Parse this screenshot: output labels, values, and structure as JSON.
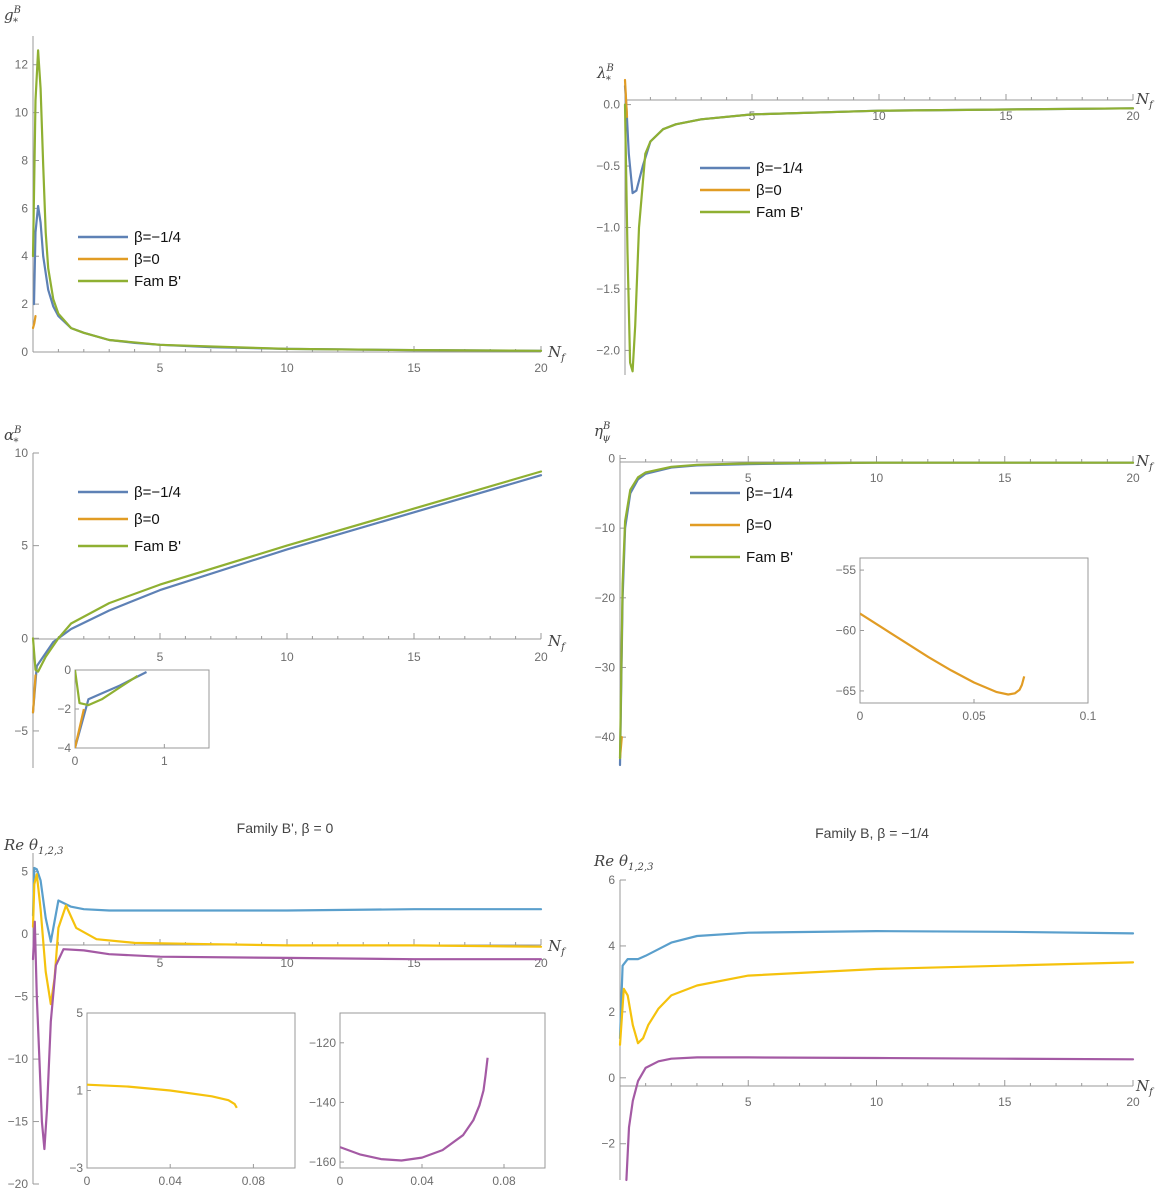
{
  "colors": {
    "blue": "#5e81b5",
    "orange": "#e19c24",
    "green": "#8fb032",
    "theta_blue": "#5a9fcc",
    "theta_yellow": "#f5c20d",
    "theta_purple": "#a45aa4",
    "axis": "#999999",
    "tick_text": "#6e6e6e"
  },
  "legend_labels": [
    "β=−1/4",
    "β=0",
    "Fam B'"
  ],
  "chart_data": [
    {
      "id": "g",
      "type": "line",
      "ylabel": "g",
      "ylabel_sup": "B",
      "ylabel_sub": "*",
      "xlabel": "N",
      "xlabel_sub": "f",
      "xlim": [
        0,
        20
      ],
      "ylim": [
        0,
        13.2
      ],
      "xticks": [
        5,
        10,
        15,
        20
      ],
      "yticks": [
        0,
        2,
        4,
        6,
        8,
        10,
        12
      ],
      "legend": [
        "β=−1/4",
        "β=0",
        "Fam B'"
      ],
      "series": [
        {
          "name": "β=−1/4",
          "color": "blue",
          "x": [
            0.04,
            0.1,
            0.2,
            0.3,
            0.4,
            0.6,
            0.8,
            1.0,
            1.5,
            2,
            3,
            4,
            5,
            7,
            10,
            15,
            20
          ],
          "y": [
            2.0,
            5.0,
            6.1,
            5.4,
            4.0,
            2.6,
            1.9,
            1.5,
            1.0,
            0.8,
            0.5,
            0.38,
            0.3,
            0.2,
            0.13,
            0.08,
            0.05
          ]
        },
        {
          "name": "β=0",
          "color": "orange",
          "x": [
            0.0,
            0.05,
            0.1
          ],
          "y": [
            1.0,
            1.2,
            1.5
          ]
        },
        {
          "name": "Fam B'",
          "color": "green",
          "x": [
            0.0,
            0.1,
            0.2,
            0.3,
            0.4,
            0.5,
            0.6,
            0.8,
            1.0,
            1.5,
            2,
            3,
            5,
            10,
            15,
            20
          ],
          "y": [
            4.0,
            10.5,
            12.6,
            11.0,
            7.8,
            5.0,
            3.5,
            2.2,
            1.6,
            1.0,
            0.8,
            0.5,
            0.3,
            0.13,
            0.08,
            0.05
          ]
        }
      ]
    },
    {
      "id": "lambda",
      "type": "line",
      "ylabel": "λ",
      "ylabel_sup": "B",
      "ylabel_sub": "*",
      "xlabel": "N",
      "xlabel_sub": "f",
      "xlim": [
        0,
        20
      ],
      "ylim": [
        -2.2,
        0.2
      ],
      "xticks": [
        5,
        10,
        15,
        20
      ],
      "yticks": [
        0.0,
        -0.5,
        -1.0,
        -1.5,
        -2.0
      ],
      "legend": [
        "β=−1/4",
        "β=0",
        "Fam B'"
      ],
      "series": [
        {
          "name": "β=−1/4",
          "color": "blue",
          "x": [
            0.0,
            0.05,
            0.15,
            0.3,
            0.45,
            0.7,
            1.0,
            1.5,
            2,
            3,
            5,
            10,
            15,
            20
          ],
          "y": [
            0.15,
            0.0,
            -0.4,
            -0.72,
            -0.7,
            -0.5,
            -0.3,
            -0.2,
            -0.16,
            -0.12,
            -0.08,
            -0.05,
            -0.04,
            -0.03
          ]
        },
        {
          "name": "β=0",
          "color": "orange",
          "x": [
            0.0,
            0.04,
            0.08
          ],
          "y": [
            0.2,
            0.05,
            -0.1
          ]
        },
        {
          "name": "Fam B'",
          "color": "green",
          "x": [
            0.0,
            0.1,
            0.2,
            0.3,
            0.4,
            0.55,
            0.8,
            1.0,
            1.5,
            2,
            3,
            5,
            10,
            15,
            20
          ],
          "y": [
            0.0,
            -1.2,
            -2.1,
            -2.17,
            -1.8,
            -1.0,
            -0.4,
            -0.3,
            -0.2,
            -0.16,
            -0.12,
            -0.08,
            -0.05,
            -0.04,
            -0.03
          ]
        }
      ]
    },
    {
      "id": "alpha",
      "type": "line",
      "ylabel": "α",
      "ylabel_sup": "B",
      "ylabel_sub": "*",
      "xlabel": "N",
      "xlabel_sub": "f",
      "xlim": [
        0,
        20
      ],
      "ylim": [
        -7,
        10
      ],
      "xticks": [
        5,
        10,
        15,
        20
      ],
      "yticks": [
        -5,
        0,
        5,
        10
      ],
      "legend": [
        "β=−1/4",
        "β=0",
        "Fam B'"
      ],
      "series": [
        {
          "name": "β=−1/4",
          "color": "blue",
          "x": [
            0.0,
            0.15,
            0.4,
            0.8,
            1.5,
            3,
            5,
            10,
            15,
            20
          ],
          "y": [
            -4.0,
            -1.5,
            -1.0,
            -0.2,
            0.5,
            1.5,
            2.6,
            4.8,
            6.8,
            8.8
          ]
        },
        {
          "name": "β=0",
          "color": "orange",
          "x": [
            0.0,
            0.1
          ],
          "y": [
            -4.0,
            -2.0
          ]
        },
        {
          "name": "Fam B'",
          "color": "green",
          "x": [
            0.0,
            0.1,
            0.2,
            0.5,
            1.0,
            1.5,
            3,
            5,
            10,
            15,
            20
          ],
          "y": [
            0.0,
            -1.7,
            -1.8,
            -1.0,
            0.0,
            0.8,
            1.9,
            2.9,
            5.0,
            7.0,
            9.0
          ]
        }
      ],
      "inset": {
        "xlim": [
          0,
          1.5
        ],
        "ylim": [
          -4,
          0
        ],
        "xticks": [
          0,
          1
        ],
        "yticks": [
          0,
          -2,
          -4
        ],
        "series": [
          {
            "color": "blue",
            "x": [
              0.0,
              0.15,
              0.3,
              0.5,
              0.8
            ],
            "y": [
              -4.0,
              -1.5,
              -1.2,
              -0.8,
              -0.1
            ]
          },
          {
            "color": "orange",
            "x": [
              0.0,
              0.1
            ],
            "y": [
              -4.0,
              -2.0
            ]
          },
          {
            "color": "green",
            "x": [
              0.0,
              0.05,
              0.15,
              0.3,
              0.5,
              0.7
            ],
            "y": [
              0.0,
              -1.7,
              -1.8,
              -1.5,
              -0.9,
              -0.3
            ]
          }
        ]
      }
    },
    {
      "id": "eta",
      "type": "line",
      "ylabel": "η",
      "ylabel_sup": "B",
      "ylabel_sub": "ψ",
      "xlabel": "N",
      "xlabel_sub": "f",
      "xlim": [
        0,
        20
      ],
      "ylim": [
        -44,
        0.5
      ],
      "xticks": [
        5,
        10,
        15,
        20
      ],
      "yticks": [
        0,
        -10,
        -20,
        -30,
        -40
      ],
      "legend": [
        "β=−1/4",
        "β=0",
        "Fam B'"
      ],
      "series": [
        {
          "name": "β=−1/4",
          "color": "blue",
          "x": [
            0.0,
            0.1,
            0.2,
            0.4,
            0.7,
            1.0,
            2,
            3,
            5,
            10,
            20
          ],
          "y": [
            -44.0,
            -20.0,
            -10.0,
            -5.0,
            -3.0,
            -2.2,
            -1.3,
            -1.0,
            -0.8,
            -0.6,
            -0.6
          ]
        },
        {
          "name": "β=0",
          "color": "orange",
          "x": [
            0.0,
            0.07
          ],
          "y": [
            -43.0,
            -40.0
          ]
        },
        {
          "name": "Fam B'",
          "color": "green",
          "x": [
            0.0,
            0.1,
            0.2,
            0.4,
            0.7,
            1.0,
            2,
            3,
            5,
            10,
            20
          ],
          "y": [
            -43.0,
            -18.0,
            -9.0,
            -4.5,
            -2.7,
            -2.0,
            -1.2,
            -0.9,
            -0.7,
            -0.6,
            -0.6
          ]
        }
      ],
      "inset": {
        "xlim": [
          0,
          0.1
        ],
        "ylim": [
          -66,
          -54
        ],
        "xticks": [
          0,
          0.05,
          0.1
        ],
        "yticks": [
          -55,
          -60,
          -65
        ],
        "series": [
          {
            "color": "orange",
            "x": [
              0.0,
              0.01,
              0.02,
              0.03,
              0.04,
              0.05,
              0.06,
              0.065,
              0.068,
              0.07,
              0.071,
              0.072
            ],
            "y": [
              -58.6,
              -59.8,
              -61.0,
              -62.2,
              -63.3,
              -64.3,
              -65.1,
              -65.3,
              -65.2,
              -64.9,
              -64.5,
              -63.8
            ]
          }
        ]
      }
    },
    {
      "id": "theta_Bp",
      "type": "line",
      "title": "Family B', β = 0",
      "ylabel": "Re θ",
      "ylabel_sub": "1,2,3",
      "xlabel": "N",
      "xlabel_sub": "f",
      "xlim": [
        0,
        20
      ],
      "ylim": [
        -20,
        6.5
      ],
      "xticks": [
        5,
        10,
        15,
        20
      ],
      "yticks": [
        5,
        0,
        -5,
        -10,
        -15,
        -20
      ],
      "series": [
        {
          "color": "theta_blue",
          "x": [
            0.0,
            0.05,
            0.15,
            0.3,
            0.5,
            0.7,
            1.0,
            1.5,
            2,
            3,
            5,
            10,
            15,
            20
          ],
          "y": [
            1.5,
            5.3,
            5.2,
            4.3,
            1.3,
            -0.6,
            2.7,
            2.2,
            2.0,
            1.9,
            1.9,
            1.9,
            2.0,
            2.0
          ]
        },
        {
          "color": "theta_yellow",
          "x": [
            0.0,
            0.05,
            0.15,
            0.3,
            0.5,
            0.7,
            0.85,
            1.0,
            1.3,
            1.7,
            2.5,
            4,
            7,
            10,
            15,
            20
          ],
          "y": [
            0.6,
            4.0,
            4.8,
            2.0,
            -3.0,
            -5.6,
            -3.5,
            0.5,
            2.3,
            0.5,
            -0.4,
            -0.7,
            -0.8,
            -0.9,
            -0.9,
            -1.0
          ]
        },
        {
          "color": "theta_purple",
          "x": [
            0.0,
            0.07,
            0.15,
            0.25,
            0.35,
            0.45,
            0.55,
            0.7,
            0.9,
            1.2,
            2,
            3,
            5,
            10,
            15,
            20
          ],
          "y": [
            -2.0,
            1.0,
            -5.0,
            -10.0,
            -15.0,
            -17.2,
            -14.0,
            -7.0,
            -2.5,
            -1.2,
            -1.3,
            -1.6,
            -1.8,
            -1.9,
            -2.0,
            -2.0
          ]
        }
      ],
      "insets": [
        {
          "xlim": [
            0,
            0.1
          ],
          "ylim": [
            -3,
            5
          ],
          "xticks": [
            0,
            0.04,
            0.08
          ],
          "yticks": [
            5,
            1,
            -3
          ],
          "series": [
            {
              "color": "theta_yellow",
              "x": [
                0.0,
                0.02,
                0.04,
                0.06,
                0.068,
                0.071,
                0.072
              ],
              "y": [
                1.3,
                1.2,
                1.0,
                0.7,
                0.5,
                0.3,
                0.1
              ]
            }
          ]
        },
        {
          "xlim": [
            0,
            0.1
          ],
          "ylim": [
            -162,
            -110
          ],
          "xticks": [
            0,
            0.04,
            0.08
          ],
          "yticks": [
            -120,
            -140,
            -160
          ],
          "series": [
            {
              "color": "theta_purple",
              "x": [
                0.0,
                0.01,
                0.02,
                0.03,
                0.04,
                0.05,
                0.06,
                0.065,
                0.068,
                0.07,
                0.071,
                0.072
              ],
              "y": [
                -155.0,
                -157.5,
                -159.0,
                -159.5,
                -158.5,
                -156.0,
                -151.0,
                -146.0,
                -141.0,
                -136.0,
                -131.0,
                -125.0
              ]
            }
          ]
        }
      ]
    },
    {
      "id": "theta_B",
      "type": "line",
      "title": "Family B, β = −1/4",
      "ylabel": "Re θ",
      "ylabel_sub": "1,2,3",
      "xlabel": "N",
      "xlabel_sub": "f",
      "xlim": [
        0,
        20
      ],
      "ylim": [
        -3.1,
        6
      ],
      "xticks": [
        5,
        10,
        15,
        20
      ],
      "yticks": [
        6,
        4,
        2,
        0,
        -2
      ],
      "series": [
        {
          "color": "theta_blue",
          "x": [
            0.0,
            0.1,
            0.3,
            0.7,
            1.0,
            1.5,
            2,
            3,
            5,
            10,
            15,
            20
          ],
          "y": [
            1.2,
            3.4,
            3.6,
            3.6,
            3.7,
            3.9,
            4.1,
            4.3,
            4.4,
            4.45,
            4.43,
            4.38
          ]
        },
        {
          "color": "theta_yellow",
          "x": [
            0.0,
            0.15,
            0.3,
            0.5,
            0.7,
            0.9,
            1.1,
            1.5,
            2,
            3,
            5,
            10,
            15,
            20
          ],
          "y": [
            1.0,
            2.7,
            2.5,
            1.6,
            1.05,
            1.2,
            1.6,
            2.1,
            2.5,
            2.8,
            3.1,
            3.3,
            3.4,
            3.5
          ]
        },
        {
          "color": "theta_purple",
          "x": [
            0.25,
            0.35,
            0.5,
            0.7,
            1.0,
            1.5,
            2,
            3,
            5,
            10,
            15,
            20
          ],
          "y": [
            -3.1,
            -1.5,
            -0.7,
            -0.1,
            0.3,
            0.5,
            0.58,
            0.62,
            0.62,
            0.6,
            0.58,
            0.56
          ]
        }
      ]
    }
  ]
}
